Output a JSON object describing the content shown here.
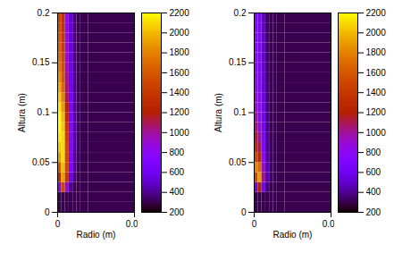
{
  "chart_data": [
    {
      "type": "heatmap",
      "xlabel": "Radio (m)",
      "ylabel": "Altura (m)",
      "xlim": [
        0,
        0.05
      ],
      "ylim": [
        0,
        0.2
      ],
      "xticks": [
        0,
        0.05
      ],
      "yticks": [
        0,
        0.05,
        0.1,
        0.15,
        0.2
      ],
      "x_edges": [
        0,
        0.0025,
        0.005,
        0.0075,
        0.01,
        0.0125,
        0.015,
        0.02,
        0.05
      ],
      "y_edges": [
        0,
        0.01,
        0.02,
        0.03,
        0.04,
        0.05,
        0.06,
        0.07,
        0.08,
        0.09,
        0.1,
        0.11,
        0.12,
        0.13,
        0.14,
        0.15,
        0.16,
        0.17,
        0.18,
        0.19,
        0.2
      ],
      "cells": [
        [
          300,
          300,
          300,
          300,
          300,
          300,
          300,
          300
        ],
        [
          300,
          300,
          300,
          300,
          300,
          300,
          300,
          300
        ],
        [
          700,
          1500,
          900,
          400,
          300,
          300,
          300,
          300
        ],
        [
          1300,
          1900,
          1400,
          600,
          350,
          300,
          300,
          300
        ],
        [
          1600,
          2000,
          1500,
          700,
          400,
          300,
          300,
          300
        ],
        [
          1900,
          2100,
          1500,
          750,
          400,
          320,
          300,
          300
        ],
        [
          2050,
          2100,
          1500,
          750,
          420,
          320,
          300,
          300
        ],
        [
          2150,
          2100,
          1450,
          750,
          420,
          320,
          300,
          300
        ],
        [
          2200,
          2050,
          1400,
          750,
          420,
          320,
          300,
          300
        ],
        [
          2200,
          2000,
          1300,
          720,
          420,
          320,
          300,
          300
        ],
        [
          2150,
          1900,
          1200,
          700,
          400,
          320,
          300,
          300
        ],
        [
          2050,
          1800,
          1100,
          650,
          400,
          320,
          300,
          300
        ],
        [
          1950,
          1700,
          1050,
          620,
          380,
          310,
          300,
          300
        ],
        [
          1850,
          1600,
          1000,
          600,
          380,
          310,
          300,
          300
        ],
        [
          1750,
          1550,
          950,
          580,
          370,
          310,
          300,
          300
        ],
        [
          1700,
          1500,
          900,
          560,
          360,
          310,
          300,
          300
        ],
        [
          1650,
          1450,
          880,
          550,
          360,
          310,
          300,
          300
        ],
        [
          1600,
          1400,
          860,
          540,
          350,
          310,
          300,
          300
        ],
        [
          1550,
          1380,
          840,
          530,
          350,
          300,
          300,
          300
        ],
        [
          1500,
          1350,
          820,
          520,
          350,
          300,
          300,
          300
        ]
      ],
      "colorbar_range": [
        200,
        2200
      ],
      "colorbar_ticks": [
        200,
        400,
        600,
        800,
        1000,
        1200,
        1400,
        1600,
        1800,
        2000,
        2200
      ]
    },
    {
      "type": "heatmap",
      "xlabel": "Radio (m)",
      "ylabel": "Altura (m)",
      "xlim": [
        0,
        0.05
      ],
      "ylim": [
        0,
        0.2
      ],
      "xticks": [
        0,
        0.05
      ],
      "yticks": [
        0,
        0.05,
        0.1,
        0.15,
        0.2
      ],
      "x_edges": [
        0,
        0.0025,
        0.005,
        0.0075,
        0.01,
        0.0125,
        0.015,
        0.02,
        0.05
      ],
      "y_edges": [
        0,
        0.01,
        0.02,
        0.03,
        0.04,
        0.05,
        0.06,
        0.07,
        0.08,
        0.09,
        0.1,
        0.11,
        0.12,
        0.13,
        0.14,
        0.15,
        0.16,
        0.17,
        0.18,
        0.19,
        0.2
      ],
      "cells": [
        [
          300,
          300,
          300,
          300,
          300,
          300,
          300,
          300
        ],
        [
          300,
          300,
          300,
          300,
          300,
          300,
          300,
          300
        ],
        [
          600,
          1200,
          600,
          350,
          300,
          300,
          300,
          300
        ],
        [
          1500,
          1900,
          1000,
          450,
          320,
          300,
          300,
          300
        ],
        [
          1800,
          1700,
          900,
          450,
          320,
          300,
          300,
          300
        ],
        [
          1500,
          1300,
          800,
          420,
          310,
          300,
          300,
          300
        ],
        [
          1300,
          1100,
          700,
          400,
          310,
          300,
          300,
          300
        ],
        [
          1150,
          1000,
          650,
          400,
          300,
          300,
          300,
          300
        ],
        [
          1050,
          900,
          620,
          380,
          300,
          300,
          300,
          300
        ],
        [
          980,
          850,
          600,
          370,
          300,
          300,
          300,
          300
        ],
        [
          920,
          800,
          580,
          360,
          300,
          300,
          300,
          300
        ],
        [
          880,
          780,
          560,
          350,
          300,
          300,
          300,
          300
        ],
        [
          850,
          750,
          540,
          350,
          300,
          300,
          300,
          300
        ],
        [
          820,
          730,
          530,
          340,
          300,
          300,
          300,
          300
        ],
        [
          800,
          710,
          520,
          340,
          300,
          300,
          300,
          300
        ],
        [
          780,
          700,
          510,
          330,
          300,
          300,
          300,
          300
        ],
        [
          760,
          690,
          500,
          330,
          300,
          300,
          300,
          300
        ],
        [
          750,
          680,
          500,
          330,
          300,
          300,
          300,
          300
        ],
        [
          740,
          670,
          490,
          320,
          300,
          300,
          300,
          300
        ],
        [
          730,
          660,
          480,
          320,
          300,
          300,
          300,
          300
        ]
      ],
      "colorbar_range": [
        200,
        2200
      ],
      "colorbar_ticks": [
        200,
        400,
        600,
        800,
        1000,
        1200,
        1400,
        1600,
        1800,
        2000,
        2200
      ]
    }
  ]
}
